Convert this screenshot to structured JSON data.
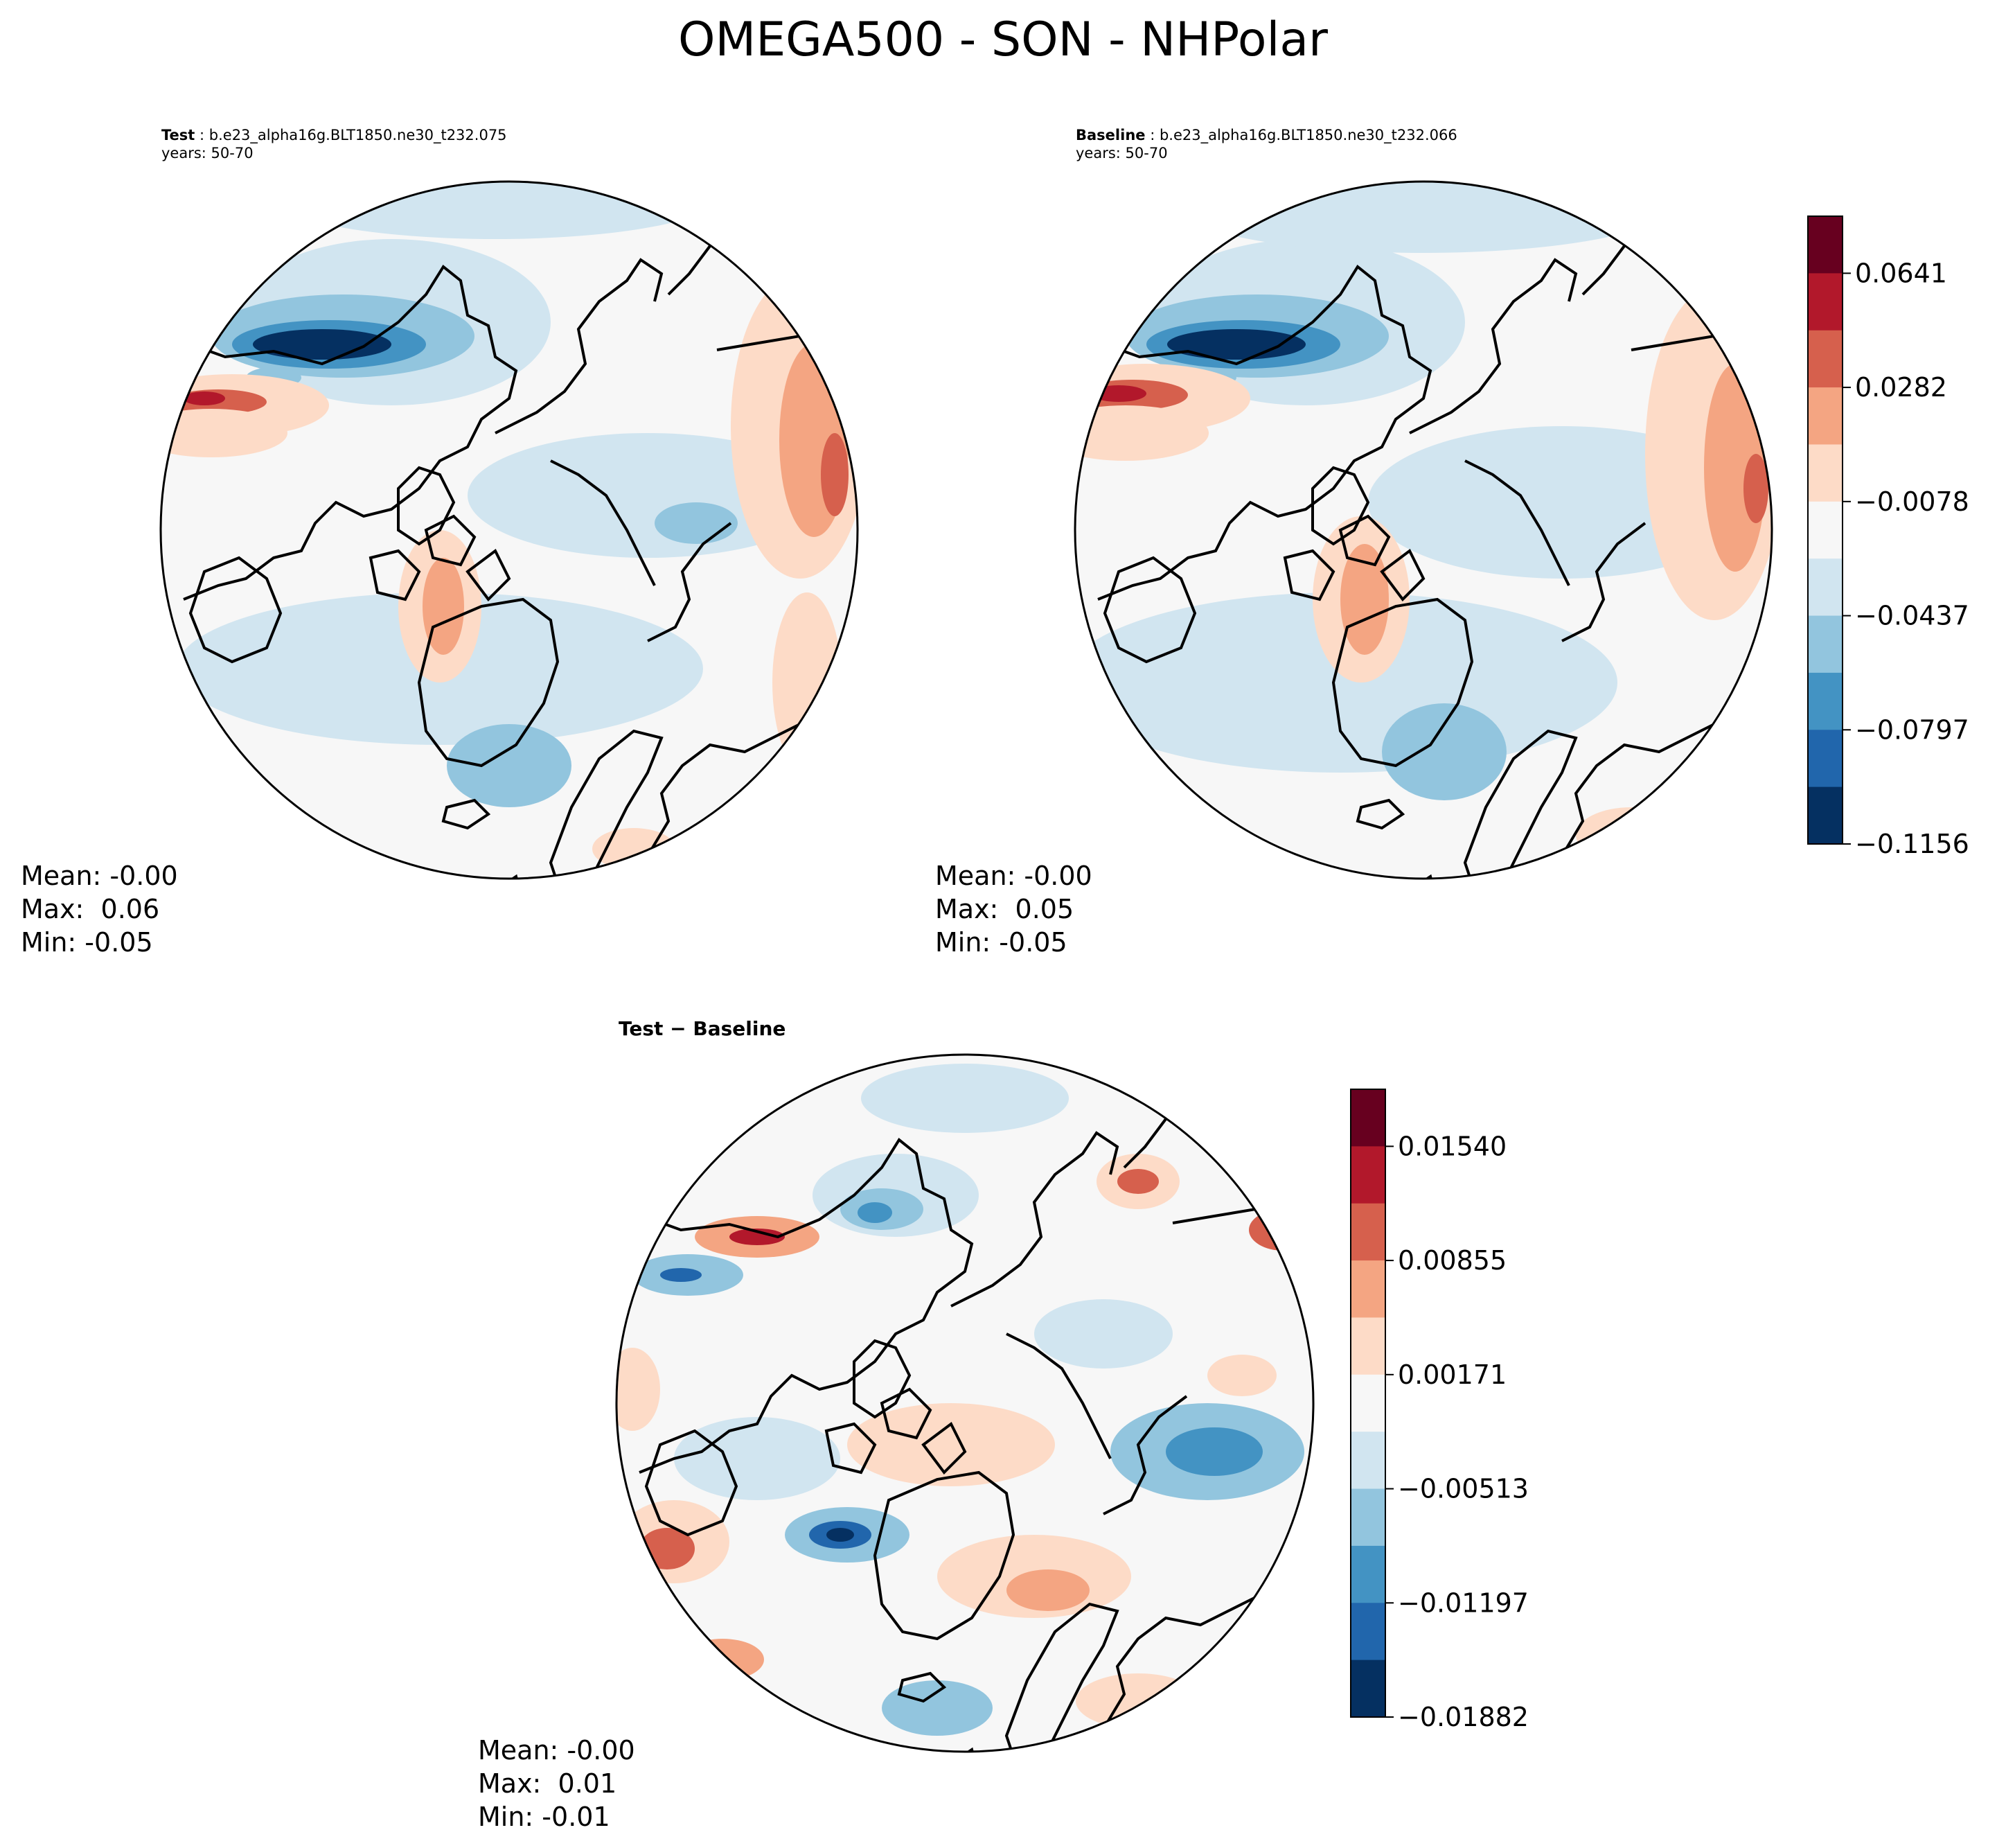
{
  "figure": {
    "title": "OMEGA500 - SON - NHPolar"
  },
  "panels": {
    "test": {
      "label": "Test",
      "case": "b.e23_alpha16g.BLT1850.ne30_t232.075",
      "years": "years: 50-70",
      "mean": "Mean: -0.00",
      "max": "Max:  0.06",
      "min": "Min: -0.05"
    },
    "baseline": {
      "label": "Baseline",
      "case": "b.e23_alpha16g.BLT1850.ne30_t232.066",
      "years": "years: 50-70",
      "mean": "Mean: -0.00",
      "max": "Max:  0.05",
      "min": "Min: -0.05"
    },
    "diff": {
      "title": "Test − Baseline",
      "mean": "Mean: -0.00",
      "max": "Max:  0.01",
      "min": "Min: -0.01"
    }
  },
  "chart_data": [
    {
      "type": "contour-map",
      "projection": "north-polar-stereographic",
      "title": "Test: b.e23_alpha16g.BLT1850.ne30_t232.075",
      "variable": "OMEGA500",
      "season": "SON",
      "stats": {
        "mean": -0.0,
        "max": 0.06,
        "min": -0.05
      },
      "colorbar": {
        "ticks": [
          0.0641,
          0.0282,
          -0.0078,
          -0.0437,
          -0.0797,
          -0.1156
        ],
        "tick_labels": [
          "0.0641",
          "0.0282",
          "−0.0078",
          "−0.0437",
          "−0.0797",
          "−0.1156"
        ],
        "levels": 11,
        "colors": [
          "#67001f",
          "#b2182b",
          "#d6604d",
          "#f4a582",
          "#fddbc7",
          "#f7f7f7",
          "#d1e5f0",
          "#92c5de",
          "#4393c3",
          "#2166ac",
          "#053061"
        ]
      }
    },
    {
      "type": "contour-map",
      "projection": "north-polar-stereographic",
      "title": "Baseline: b.e23_alpha16g.BLT1850.ne30_t232.066",
      "variable": "OMEGA500",
      "season": "SON",
      "stats": {
        "mean": -0.0,
        "max": 0.05,
        "min": -0.05
      }
    },
    {
      "type": "contour-map",
      "projection": "north-polar-stereographic",
      "title": "Test − Baseline",
      "stats": {
        "mean": -0.0,
        "max": 0.01,
        "min": -0.01
      },
      "colorbar": {
        "ticks": [
          0.0154,
          0.00855,
          0.00171,
          -0.00513,
          -0.01197,
          -0.01882
        ],
        "tick_labels": [
          "0.01540",
          "0.00855",
          "0.00171",
          "−0.00513",
          "−0.01197",
          "−0.01882"
        ],
        "levels": 11
      }
    }
  ]
}
